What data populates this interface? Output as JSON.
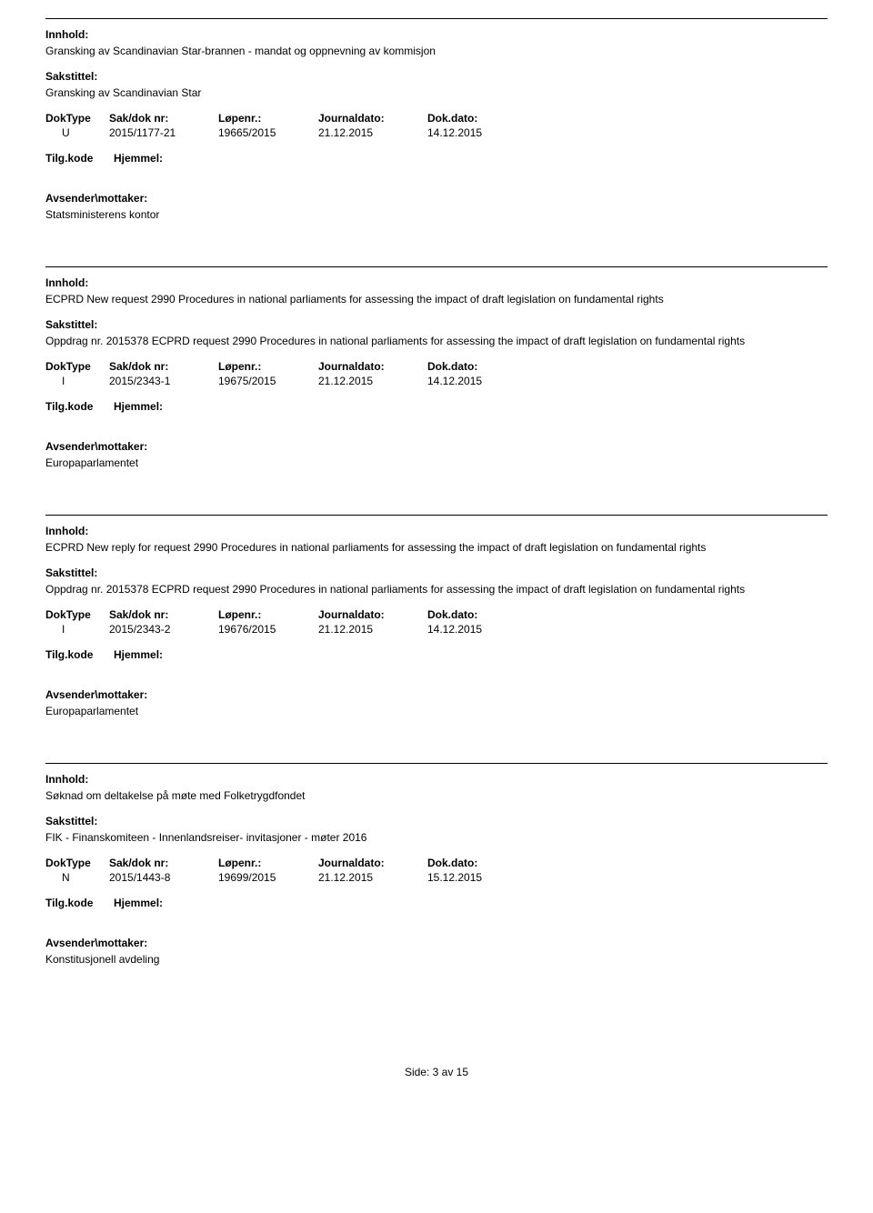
{
  "labels": {
    "innhold": "Innhold:",
    "sakstittel": "Sakstittel:",
    "doktype": "DokType",
    "saknr": "Sak/dok nr:",
    "lopenr": "Løpenr.:",
    "journaldato": "Journaldato:",
    "dokdato": "Dok.dato:",
    "tilgkode": "Tilg.kode",
    "hjemmel": "Hjemmel:",
    "avsender": "Avsender\\mottaker:"
  },
  "records": [
    {
      "innhold": "Gransking  av Scandinavian Star-brannen - mandat og oppnevning av kommisjon",
      "sakstittel": "Gransking av Scandinavian Star",
      "doktype": "U",
      "saknr": "2015/1177-21",
      "lopenr": "19665/2015",
      "journaldato": "21.12.2015",
      "dokdato": "14.12.2015",
      "avsender": "Statsministerens kontor"
    },
    {
      "innhold": "ECPRD New request 2990 Procedures in national parliaments for assessing the impact of draft legislation on fundamental rights",
      "sakstittel": "Oppdrag nr. 2015378 ECPRD request 2990 Procedures in national parliaments for assessing the impact of draft legislation on fundamental rights",
      "doktype": "I",
      "saknr": "2015/2343-1",
      "lopenr": "19675/2015",
      "journaldato": "21.12.2015",
      "dokdato": "14.12.2015",
      "avsender": "Europaparlamentet"
    },
    {
      "innhold": "ECPRD New reply for request 2990 Procedures in national parliaments for assessing the impact of draft legislation on fundamental rights",
      "sakstittel": "Oppdrag nr. 2015378 ECPRD request 2990 Procedures in national parliaments for assessing the impact of draft legislation on fundamental rights",
      "doktype": "I",
      "saknr": "2015/2343-2",
      "lopenr": "19676/2015",
      "journaldato": "21.12.2015",
      "dokdato": "14.12.2015",
      "avsender": "Europaparlamentet"
    },
    {
      "innhold": "Søknad om deltakelse på møte med Folketrygdfondet",
      "sakstittel": "FIK - Finanskomiteen - Innenlandsreiser- invitasjoner - møter 2016",
      "doktype": "N",
      "saknr": "2015/1443-8",
      "lopenr": "19699/2015",
      "journaldato": "21.12.2015",
      "dokdato": "15.12.2015",
      "avsender": "Konstitusjonell avdeling"
    }
  ],
  "footer": {
    "text_prefix": "Side: ",
    "current": "3",
    "separator": " av ",
    "total": "15"
  }
}
